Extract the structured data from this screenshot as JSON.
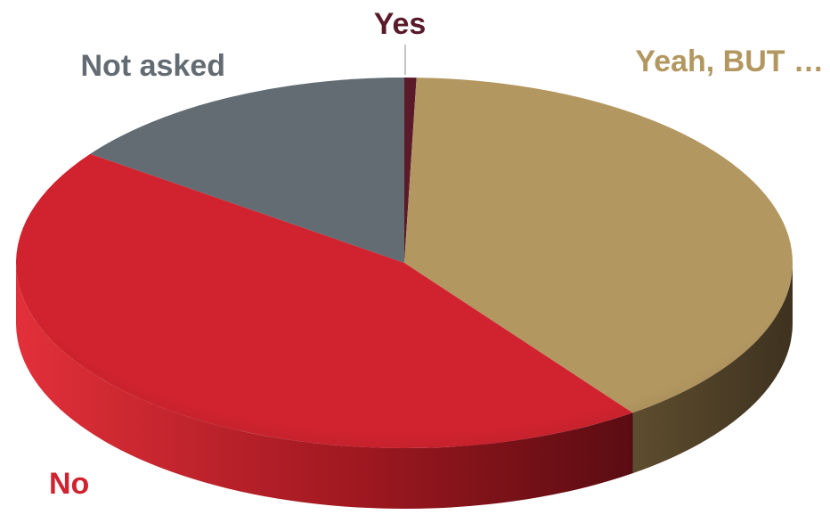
{
  "chart_data": {
    "type": "pie",
    "style": "3d",
    "title": "",
    "slices": [
      {
        "label": "Yes",
        "value": 0.5,
        "color": "#5a1a2a"
      },
      {
        "label": "Yeah, BUT …",
        "value": 39.5,
        "color": "#b39760"
      },
      {
        "label": "No",
        "value": 45,
        "color": "#d0232f"
      },
      {
        "label": "Not asked",
        "value": 15,
        "color": "#636c73"
      }
    ],
    "legend": "none",
    "start_angle_deg": 0,
    "direction": "clockwise"
  }
}
